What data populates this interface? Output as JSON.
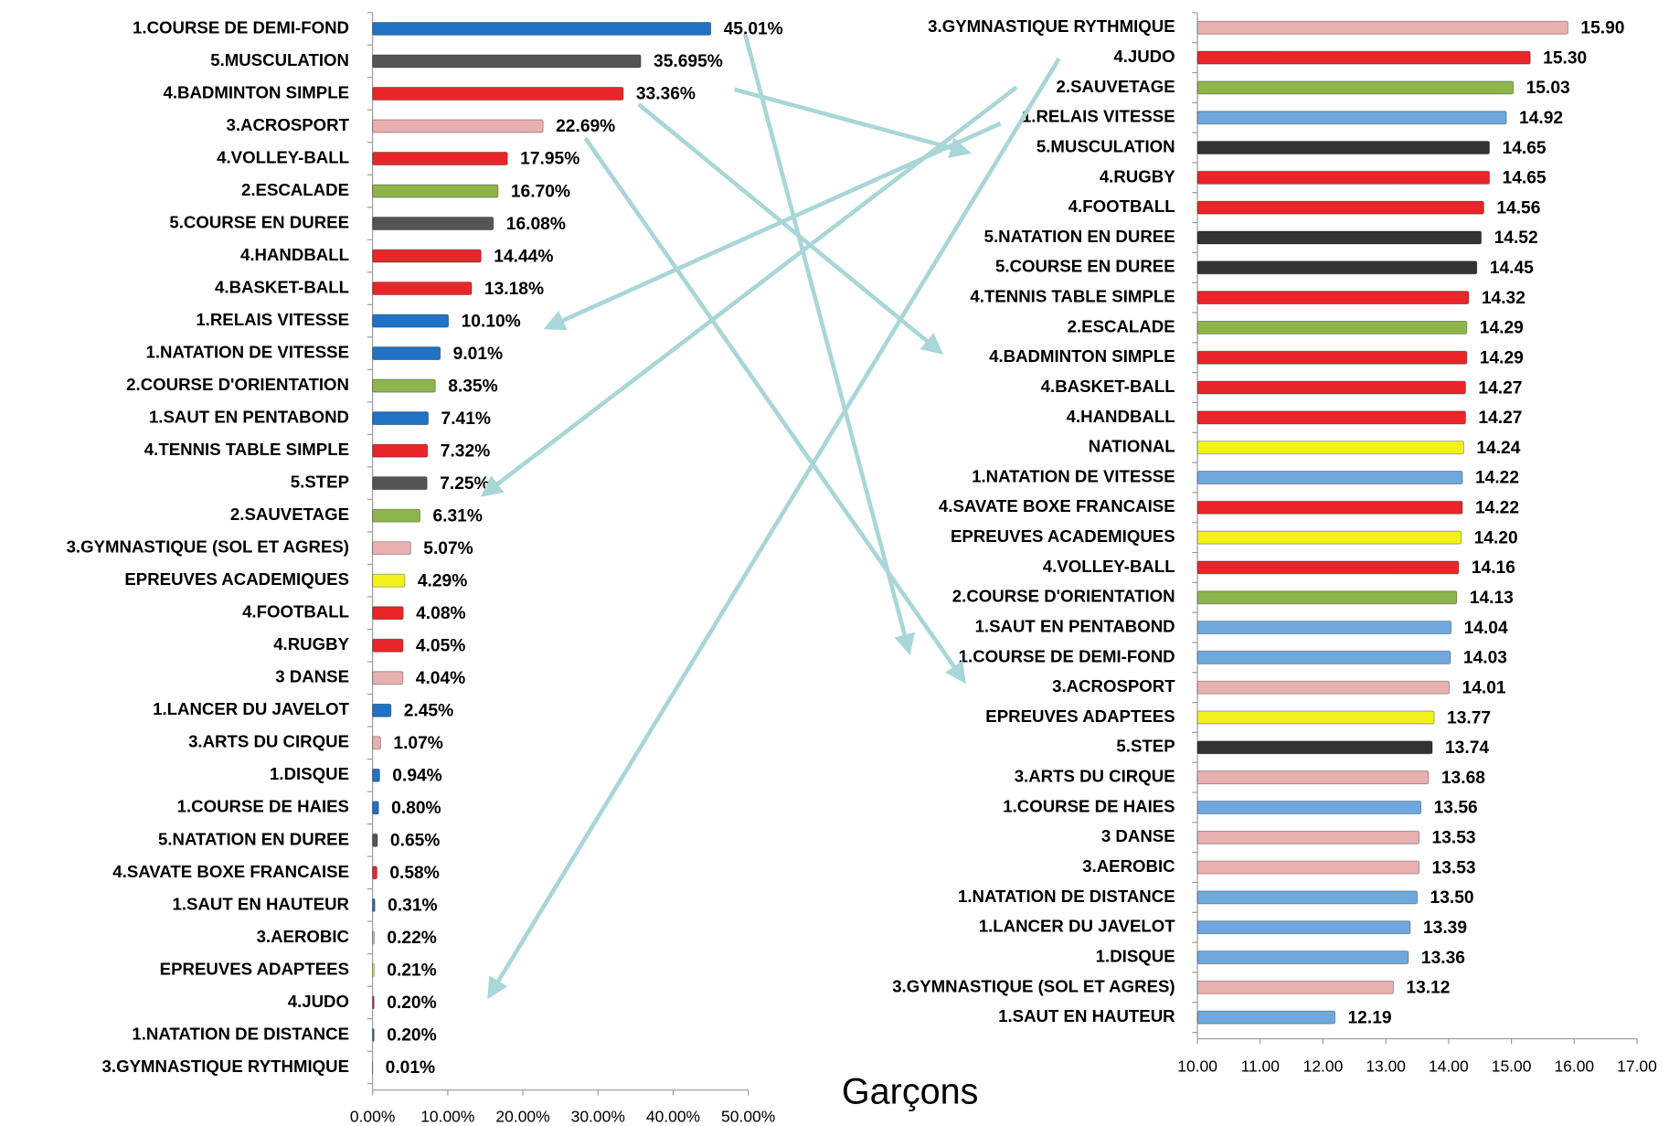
{
  "caption": "Garçons",
  "chart_data": [
    {
      "type": "bar",
      "orientation": "horizontal",
      "categories": [
        "1.COURSE DE DEMI-FOND",
        "5.MUSCULATION",
        "4.BADMINTON SIMPLE",
        "3.ACROSPORT",
        "4.VOLLEY-BALL",
        "2.ESCALADE",
        "5.COURSE EN DUREE",
        "4.HANDBALL",
        "4.BASKET-BALL",
        "1.RELAIS VITESSE",
        "1.NATATION DE VITESSE",
        "2.COURSE D'ORIENTATION",
        "1.SAUT EN PENTABOND",
        "4.TENNIS TABLE SIMPLE",
        "5.STEP",
        "2.SAUVETAGE",
        "3.GYMNASTIQUE (SOL ET AGRES)",
        "EPREUVES ACADEMIQUES",
        "4.FOOTBALL",
        "4.RUGBY",
        "3 DANSE",
        "1.LANCER DU JAVELOT",
        "3.ARTS DU CIRQUE",
        "1.DISQUE",
        "1.COURSE DE HAIES",
        "5.NATATION EN DUREE",
        "4.SAVATE BOXE FRANCAISE",
        "1.SAUT EN HAUTEUR",
        "3.AEROBIC",
        "EPREUVES ADAPTEES",
        "4.JUDO",
        "1.NATATION DE DISTANCE",
        "3.GYMNASTIQUE RYTHMIQUE"
      ],
      "values": [
        45.01,
        35.695,
        33.36,
        22.69,
        17.95,
        16.7,
        16.08,
        14.44,
        13.18,
        10.1,
        9.01,
        8.35,
        7.41,
        7.32,
        7.25,
        6.31,
        5.07,
        4.29,
        4.08,
        4.05,
        4.04,
        2.45,
        1.07,
        0.94,
        0.8,
        0.65,
        0.58,
        0.31,
        0.22,
        0.21,
        0.2,
        0.2,
        0.01
      ],
      "value_labels": [
        "45.01%",
        "35.695%",
        "33.36%",
        "22.69%",
        "17.95%",
        "16.70%",
        "16.08%",
        "14.44%",
        "13.18%",
        "10.10%",
        "9.01%",
        "8.35%",
        "7.41%",
        "7.32%",
        "7.25%",
        "6.31%",
        "5.07%",
        "4.29%",
        "4.08%",
        "4.05%",
        "4.04%",
        "2.45%",
        "1.07%",
        "0.94%",
        "0.80%",
        "0.65%",
        "0.58%",
        "0.31%",
        "0.22%",
        "0.21%",
        "0.20%",
        "0.20%",
        "0.01%"
      ],
      "colors": [
        "#1f72c4",
        "#555555",
        "#e8262a",
        "#e8b0b0",
        "#e8262a",
        "#8db54b",
        "#555555",
        "#e8262a",
        "#e8262a",
        "#1f72c4",
        "#1f72c4",
        "#8db54b",
        "#1f72c4",
        "#e8262a",
        "#555555",
        "#8db54b",
        "#e8b0b0",
        "#f2f21a",
        "#e8262a",
        "#e8262a",
        "#e8b0b0",
        "#1f72c4",
        "#e8b0b0",
        "#1f72c4",
        "#1f72c4",
        "#555555",
        "#e8262a",
        "#1f72c4",
        "#e8b0b0",
        "#f2f21a",
        "#e8262a",
        "#1f72c4",
        "#e8b0b0"
      ],
      "xlim": [
        0,
        50
      ],
      "xticks": [
        {
          "value": 0,
          "label": "0.00%"
        },
        {
          "value": 10,
          "label": "10.00%"
        },
        {
          "value": 20,
          "label": "20.00%"
        },
        {
          "value": 30,
          "label": "30.00%"
        },
        {
          "value": 40,
          "label": "40.00%"
        },
        {
          "value": 50,
          "label": "50.00%"
        }
      ]
    },
    {
      "type": "bar",
      "orientation": "horizontal",
      "categories": [
        "3.GYMNASTIQUE RYTHMIQUE",
        "4.JUDO",
        "2.SAUVETAGE",
        "1.RELAIS VITESSE",
        "5.MUSCULATION",
        "4.RUGBY",
        "4.FOOTBALL",
        "5.NATATION EN DUREE",
        "5.COURSE EN DUREE",
        "4.TENNIS TABLE SIMPLE",
        "2.ESCALADE",
        "4.BADMINTON SIMPLE",
        "4.BASKET-BALL",
        "4.HANDBALL",
        "NATIONAL",
        "1.NATATION DE VITESSE",
        "4.SAVATE BOXE FRANCAISE",
        "EPREUVES ACADEMIQUES",
        "4.VOLLEY-BALL",
        "2.COURSE D'ORIENTATION",
        "1.SAUT EN PENTABOND",
        "1.COURSE DE DEMI-FOND",
        "3.ACROSPORT",
        "EPREUVES ADAPTEES",
        "5.STEP",
        "3.ARTS DU CIRQUE",
        "1.COURSE DE HAIES",
        "3 DANSE",
        "3.AEROBIC",
        "1.NATATION DE DISTANCE",
        "1.LANCER DU JAVELOT",
        "1.DISQUE",
        "3.GYMNASTIQUE (SOL ET AGRES)",
        "1.SAUT EN HAUTEUR"
      ],
      "values": [
        15.9,
        15.3,
        15.03,
        14.92,
        14.65,
        14.65,
        14.56,
        14.52,
        14.45,
        14.32,
        14.29,
        14.29,
        14.27,
        14.27,
        14.24,
        14.22,
        14.22,
        14.2,
        14.16,
        14.13,
        14.04,
        14.03,
        14.01,
        13.77,
        13.74,
        13.68,
        13.56,
        13.53,
        13.53,
        13.5,
        13.39,
        13.36,
        13.12,
        12.19
      ],
      "value_labels": [
        "15.90",
        "15.30",
        "15.03",
        "14.92",
        "14.65",
        "14.65",
        "14.56",
        "14.52",
        "14.45",
        "14.32",
        "14.29",
        "14.29",
        "14.27",
        "14.27",
        "14.24",
        "14.22",
        "14.22",
        "14.20",
        "14.16",
        "14.13",
        "14.04",
        "14.03",
        "14.01",
        "13.77",
        "13.74",
        "13.68",
        "13.56",
        "13.53",
        "13.53",
        "13.50",
        "13.39",
        "13.36",
        "13.12",
        "12.19"
      ],
      "colors": [
        "#e8b0b0",
        "#e8262a",
        "#8db54b",
        "#6fa8dc",
        "#333333",
        "#e8262a",
        "#e8262a",
        "#333333",
        "#333333",
        "#e8262a",
        "#8db54b",
        "#e8262a",
        "#e8262a",
        "#e8262a",
        "#f2f21a",
        "#6fa8dc",
        "#e8262a",
        "#f2f21a",
        "#e8262a",
        "#8db54b",
        "#6fa8dc",
        "#6fa8dc",
        "#e8b0b0",
        "#f2f21a",
        "#333333",
        "#e8b0b0",
        "#6fa8dc",
        "#e8b0b0",
        "#e8b0b0",
        "#6fa8dc",
        "#6fa8dc",
        "#6fa8dc",
        "#e8b0b0",
        "#6fa8dc"
      ],
      "xlim": [
        10,
        17
      ],
      "xticks": [
        {
          "value": 10,
          "label": "10.00"
        },
        {
          "value": 11,
          "label": "11.00"
        },
        {
          "value": 12,
          "label": "12.00"
        },
        {
          "value": 13,
          "label": "13.00"
        },
        {
          "value": 14,
          "label": "14.00"
        },
        {
          "value": 15,
          "label": "15.00"
        },
        {
          "value": 16,
          "label": "16.00"
        },
        {
          "value": 17,
          "label": "17.00"
        }
      ]
    }
  ]
}
